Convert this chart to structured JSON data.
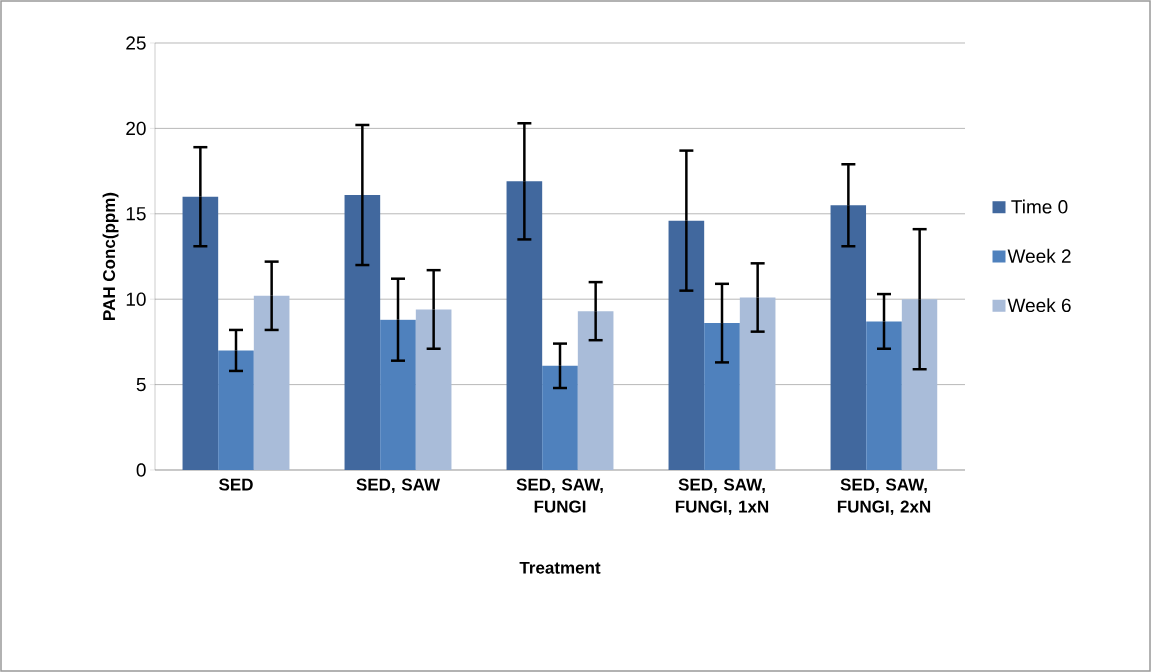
{
  "chart_data": {
    "type": "bar",
    "xlabel": "Treatment",
    "ylabel": "PAH Conc(ppm)",
    "categories": [
      "SED",
      "SED, SAW",
      "SED, SAW, FUNGI",
      "SED, SAW, FUNGI, 1xN",
      "SED, SAW, FUNGI, 2xN"
    ],
    "series": [
      {
        "name": "Time 0",
        "color": "#41689e",
        "values": [
          16.0,
          16.1,
          16.9,
          14.6,
          15.5
        ],
        "errors": [
          2.9,
          4.1,
          3.4,
          4.1,
          2.4
        ]
      },
      {
        "name": "Week 2",
        "color": "#4f81bd",
        "values": [
          7.0,
          8.8,
          6.1,
          8.6,
          8.7
        ],
        "errors": [
          1.2,
          2.4,
          1.3,
          2.3,
          1.6
        ]
      },
      {
        "name": "Week 6",
        "color": "#a9bcd9",
        "values": [
          10.2,
          9.4,
          9.3,
          10.1,
          10.0
        ],
        "errors": [
          2.0,
          2.3,
          1.7,
          2.0,
          4.1
        ]
      }
    ],
    "ylim": [
      0,
      25
    ],
    "yticks": [
      0,
      5,
      10,
      15,
      20,
      25
    ],
    "grid": "y",
    "legend": "right"
  }
}
